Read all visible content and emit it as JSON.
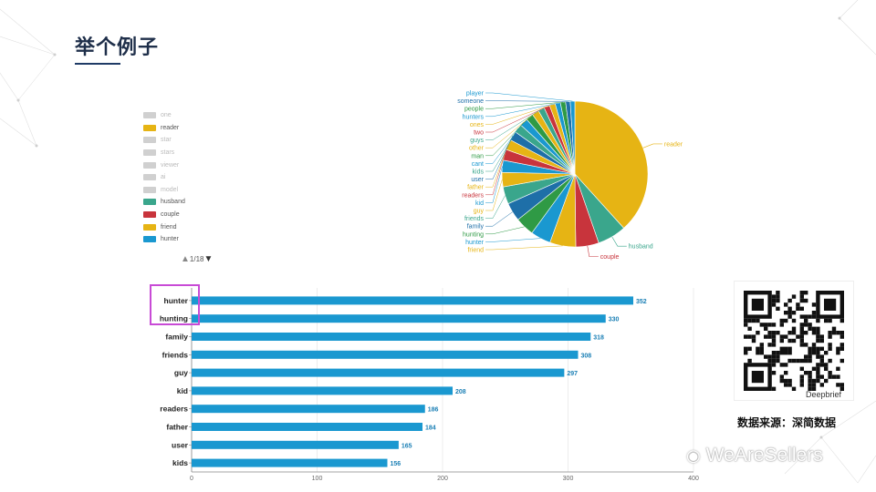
{
  "page_title": "举个例子",
  "legend": {
    "items": [
      {
        "label": "one",
        "color": "#d0d0d0",
        "active": false
      },
      {
        "label": "reader",
        "color": "#e6b414",
        "active": true
      },
      {
        "label": "star",
        "color": "#d0d0d0",
        "active": false
      },
      {
        "label": "stars",
        "color": "#d0d0d0",
        "active": false
      },
      {
        "label": "viewer",
        "color": "#d0d0d0",
        "active": false
      },
      {
        "label": "ai",
        "color": "#d0d0d0",
        "active": false
      },
      {
        "label": "model",
        "color": "#d0d0d0",
        "active": false
      },
      {
        "label": "husband",
        "color": "#3aa68c",
        "active": true
      },
      {
        "label": "couple",
        "color": "#c8343c",
        "active": true
      },
      {
        "label": "friend",
        "color": "#e6b414",
        "active": true
      },
      {
        "label": "hunter",
        "color": "#1a98d0",
        "active": true
      }
    ],
    "pager": "1/18"
  },
  "qr": {
    "caption": "Deepbrief"
  },
  "source_text": "数据来源：深简数据",
  "brand_text": "WeAreSellers",
  "chart_data": [
    {
      "type": "pie",
      "slices": [
        {
          "label": "reader",
          "value": 30,
          "color": "#e6b414"
        },
        {
          "label": "husband",
          "value": 5,
          "color": "#3aa68c"
        },
        {
          "label": "couple",
          "value": 4,
          "color": "#c8343c"
        },
        {
          "label": "friend",
          "value": 4.5,
          "color": "#e6b414"
        },
        {
          "label": "hunter",
          "value": 3.5,
          "color": "#1a98d0"
        },
        {
          "label": "hunting",
          "value": 3.3,
          "color": "#2f9a45"
        },
        {
          "label": "family",
          "value": 3.2,
          "color": "#1e6fa8"
        },
        {
          "label": "friends",
          "value": 3.0,
          "color": "#3aa68c"
        },
        {
          "label": "guy",
          "value": 2.5,
          "color": "#e6b414"
        },
        {
          "label": "kid",
          "value": 2.1,
          "color": "#1a98d0"
        },
        {
          "label": "readers",
          "value": 1.9,
          "color": "#c8343c"
        },
        {
          "label": "father",
          "value": 1.8,
          "color": "#e6b414"
        },
        {
          "label": "user",
          "value": 1.6,
          "color": "#1e6fa8"
        },
        {
          "label": "kids",
          "value": 1.5,
          "color": "#3aa68c"
        },
        {
          "label": "cant",
          "value": 1.4,
          "color": "#1a98d0"
        },
        {
          "label": "man",
          "value": 1.3,
          "color": "#2f9a45"
        },
        {
          "label": "other",
          "value": 1.2,
          "color": "#e6b414"
        },
        {
          "label": "guys",
          "value": 1.1,
          "color": "#3aa68c"
        },
        {
          "label": "two",
          "value": 1.0,
          "color": "#c8343c"
        },
        {
          "label": "ones",
          "value": 1.0,
          "color": "#e6b414"
        },
        {
          "label": "hunters",
          "value": 0.9,
          "color": "#1a98d0"
        },
        {
          "label": "people",
          "value": 0.9,
          "color": "#2f9a45"
        },
        {
          "label": "someone",
          "value": 0.8,
          "color": "#1e6fa8"
        },
        {
          "label": "player",
          "value": 0.8,
          "color": "#1a98d0"
        }
      ]
    },
    {
      "type": "bar",
      "orientation": "horizontal",
      "categories": [
        "hunter",
        "hunting",
        "family",
        "friends",
        "guy",
        "kid",
        "readers",
        "father",
        "user",
        "kids"
      ],
      "values": [
        352,
        330,
        318,
        308,
        297,
        208,
        186,
        184,
        165,
        156
      ],
      "xlim": [
        0,
        400
      ],
      "xticks": [
        0,
        100,
        200,
        300,
        400
      ],
      "bar_color": "#1a98d0",
      "label_color": "#1a7fb5",
      "grid": true
    }
  ]
}
